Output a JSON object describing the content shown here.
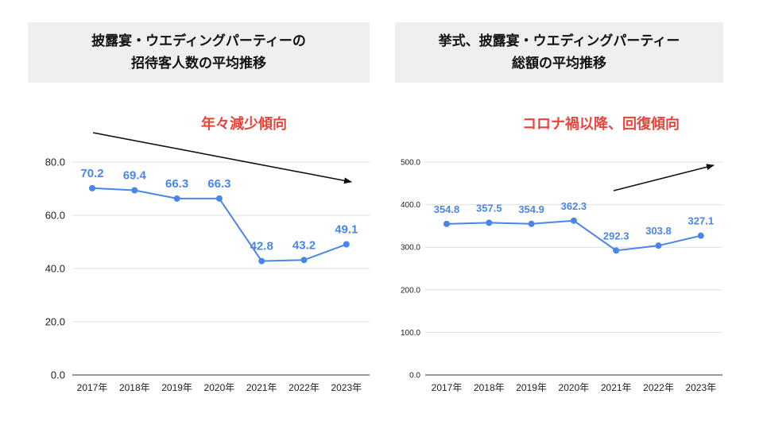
{
  "chart_data": [
    {
      "type": "line",
      "title_lines": [
        "披露宴・ウエディングパーティーの",
        "招待客人数の平均推移"
      ],
      "annotation": "年々減少傾向",
      "trend": "down",
      "categories": [
        "2017年",
        "2018年",
        "2019年",
        "2020年",
        "2021年",
        "2022年",
        "2023年"
      ],
      "values": [
        70.2,
        69.4,
        66.3,
        66.3,
        42.8,
        43.2,
        49.1
      ],
      "data_labels": [
        "70.2",
        "69.4",
        "66.3",
        "66.3",
        "42.8",
        "43.2",
        "49.1"
      ],
      "yticks": [
        0,
        20,
        40,
        60,
        80
      ],
      "ytick_labels": [
        "0.0",
        "20.0",
        "40.0",
        "60.0",
        "80.0"
      ],
      "ylim": [
        0,
        80
      ],
      "xlabel": "",
      "ylabel": "",
      "grid": true,
      "color": "#4a86e8"
    },
    {
      "type": "line",
      "title_lines": [
        "挙式、披露宴・ウエディングパーティー",
        "総額の平均推移"
      ],
      "annotation": "コロナ禍以降、回復傾向",
      "trend": "up",
      "categories": [
        "2017年",
        "2018年",
        "2019年",
        "2020年",
        "2021年",
        "2022年",
        "2023年"
      ],
      "values": [
        354.8,
        357.5,
        354.9,
        362.3,
        292.3,
        303.8,
        327.1
      ],
      "data_labels": [
        "354.8",
        "357.5",
        "354.9",
        "362.3",
        "292.3",
        "303.8",
        "327.1"
      ],
      "yticks": [
        0,
        100,
        200,
        300,
        400,
        500
      ],
      "ytick_labels": [
        "0.0",
        "100.0",
        "200.0",
        "300.0",
        "400.0",
        "500.0"
      ],
      "ylim": [
        0,
        500
      ],
      "xlabel": "",
      "ylabel": "",
      "grid": true,
      "color": "#4a86e8"
    }
  ]
}
